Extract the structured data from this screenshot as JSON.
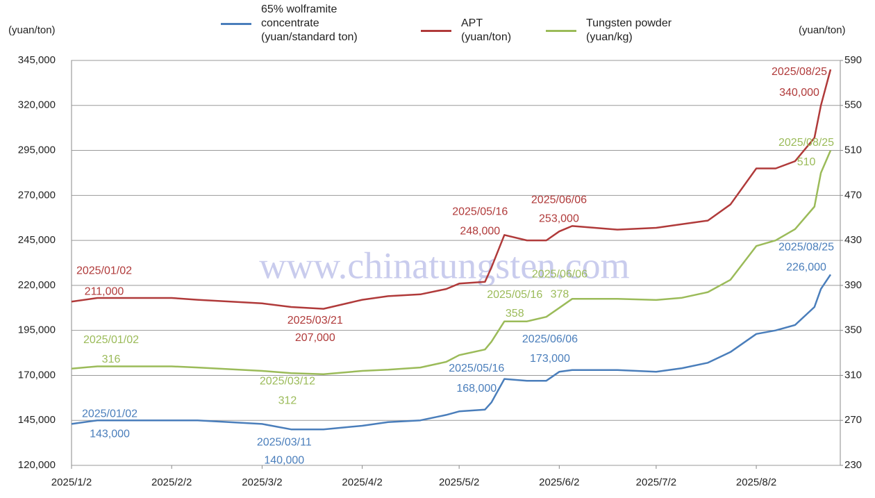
{
  "chart_data": {
    "type": "line",
    "y_label": "(yuan/ton)",
    "y2_label": "(yuan/ton)",
    "watermark": "www.chinatungsten.com",
    "x": [
      "2025/01/02",
      "2025/01/10",
      "2025/02/02",
      "2025/02/10",
      "2025/03/02",
      "2025/03/11",
      "2025/03/21",
      "2025/04/02",
      "2025/04/10",
      "2025/04/20",
      "2025/04/28",
      "2025/05/02",
      "2025/05/10",
      "2025/05/12",
      "2025/05/16",
      "2025/05/23",
      "2025/05/29",
      "2025/06/02",
      "2025/06/06",
      "2025/06/20",
      "2025/07/02",
      "2025/07/10",
      "2025/07/18",
      "2025/07/25",
      "2025/08/02",
      "2025/08/08",
      "2025/08/14",
      "2025/08/20",
      "2025/08/22",
      "2025/08/25"
    ],
    "xlim": [
      "2025/01/02",
      "2025/08/28"
    ],
    "xticks": [
      {
        "value": "2025/01/02",
        "label": "2025/1/2"
      },
      {
        "value": "2025/02/02",
        "label": "2025/2/2"
      },
      {
        "value": "2025/03/02",
        "label": "2025/3/2"
      },
      {
        "value": "2025/04/02",
        "label": "2025/4/2"
      },
      {
        "value": "2025/05/02",
        "label": "2025/5/2"
      },
      {
        "value": "2025/06/02",
        "label": "2025/6/2"
      },
      {
        "value": "2025/07/02",
        "label": "2025/7/2"
      },
      {
        "value": "2025/08/02",
        "label": "2025/8/2"
      }
    ],
    "ylim": [
      120000,
      345000
    ],
    "yticks": [
      {
        "value": 120000,
        "label": "120,000"
      },
      {
        "value": 145000,
        "label": "145,000"
      },
      {
        "value": 170000,
        "label": "170,000"
      },
      {
        "value": 195000,
        "label": "195,000"
      },
      {
        "value": 220000,
        "label": "220,000"
      },
      {
        "value": 245000,
        "label": "245,000"
      },
      {
        "value": 270000,
        "label": "270,000"
      },
      {
        "value": 295000,
        "label": "295,000"
      },
      {
        "value": 320000,
        "label": "320,000"
      },
      {
        "value": 345000,
        "label": "345,000"
      }
    ],
    "y2lim": [
      230,
      590
    ],
    "y2ticks": [
      230,
      270,
      310,
      350,
      390,
      430,
      470,
      510,
      550,
      590
    ],
    "grid": true,
    "series": [
      {
        "name": "65% wolframite\nconcentrate\n(yuan/standard ton)",
        "color": "#4a7ebb",
        "values": [
          143000,
          145000,
          145000,
          145000,
          143000,
          140000,
          140000,
          142000,
          144000,
          145000,
          148000,
          150000,
          151000,
          155000,
          168000,
          167000,
          167000,
          172000,
          173000,
          173000,
          172000,
          174000,
          177000,
          183000,
          193000,
          195000,
          198000,
          208000,
          218000,
          226000
        ],
        "annotations": [
          {
            "date": "2025/01/02",
            "value": 143000,
            "label": "143,000"
          },
          {
            "date": "2025/03/11",
            "value": 140000,
            "label": "140,000"
          },
          {
            "date": "2025/05/16",
            "value": 168000,
            "label": "168,000"
          },
          {
            "date": "2025/06/06",
            "value": 173000,
            "label": "173,000"
          },
          {
            "date": "2025/08/25",
            "value": 226000,
            "label": "226,000"
          }
        ]
      },
      {
        "name": "APT\n(yuan/ton)",
        "color": "#b03a3a",
        "values": [
          211000,
          213000,
          213000,
          212000,
          210000,
          208000,
          207000,
          212000,
          214000,
          215000,
          218000,
          221000,
          222000,
          230000,
          248000,
          245000,
          245000,
          250000,
          253000,
          251000,
          252000,
          254000,
          256000,
          265000,
          285000,
          285000,
          289000,
          302000,
          320000,
          340000
        ],
        "annotations": [
          {
            "date": "2025/01/02",
            "value": 211000,
            "label": "211,000"
          },
          {
            "date": "2025/03/21",
            "value": 207000,
            "label": "207,000"
          },
          {
            "date": "2025/05/16",
            "value": 248000,
            "label": "248,000"
          },
          {
            "date": "2025/06/06",
            "value": 253000,
            "label": "253,000"
          },
          {
            "date": "2025/08/25",
            "value": 340000,
            "label": "340,000"
          }
        ]
      },
      {
        "name": "Tungsten powder\n(yuan/kg)",
        "color": "#9bbb59",
        "axis": "y2",
        "values": [
          316,
          318,
          318,
          317,
          314,
          312,
          311,
          314,
          315,
          317,
          322,
          328,
          333,
          340,
          358,
          358,
          362,
          370,
          378,
          378,
          377,
          379,
          384,
          395,
          425,
          430,
          440,
          460,
          490,
          510
        ],
        "annotations": [
          {
            "date": "2025/01/02",
            "value": 316,
            "label": "316"
          },
          {
            "date": "2025/03/12",
            "value": 312,
            "label": "312"
          },
          {
            "date": "2025/05/16",
            "value": 358,
            "label": "358"
          },
          {
            "date": "2025/06/06",
            "value": 378,
            "label": "378"
          },
          {
            "date": "2025/08/25",
            "value": 510,
            "label": "510"
          }
        ]
      }
    ]
  }
}
